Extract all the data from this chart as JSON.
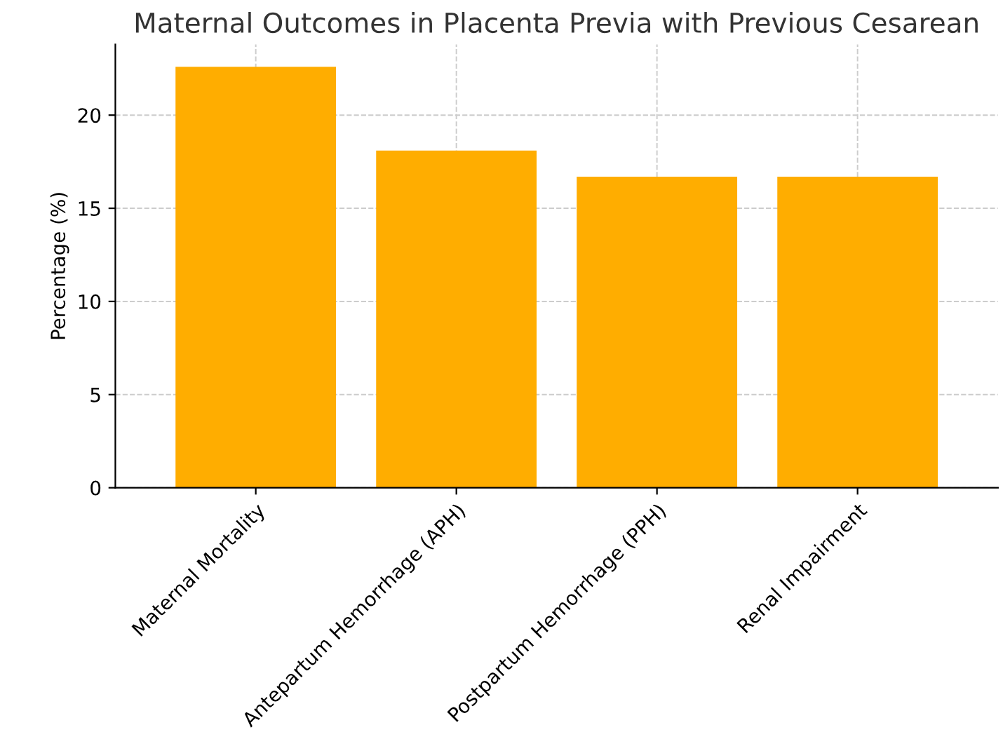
{
  "chart_data": {
    "type": "bar",
    "title": "Maternal Outcomes in Placenta Previa with Previous Cesarean",
    "ylabel": "Percentage (%)",
    "categories": [
      "Maternal Mortality",
      "Antepartum Hemorrhage (APH)",
      "Postpartum Hemorrhage (PPH)",
      "Renal Impairment"
    ],
    "values": [
      22.6,
      18.1,
      16.7,
      16.7
    ],
    "color": "#ffad00",
    "ylim": [
      0,
      23.8
    ],
    "yticks": [
      0,
      5,
      10,
      15,
      20
    ],
    "grid": true
  }
}
